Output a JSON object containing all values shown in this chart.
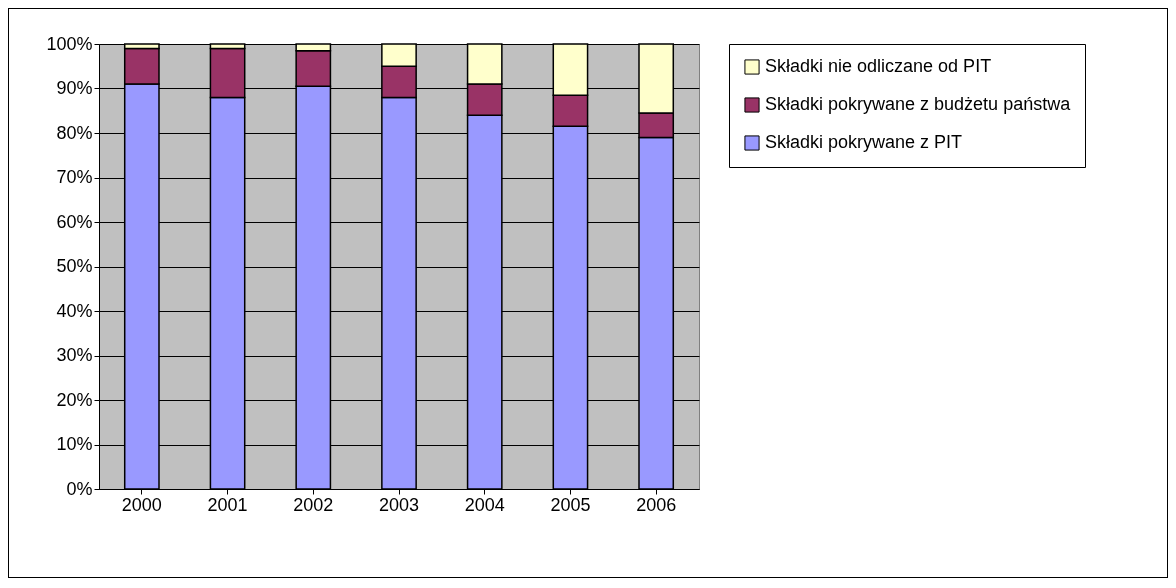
{
  "chart_data": {
    "type": "bar",
    "stacked": true,
    "categories": [
      "2000",
      "2001",
      "2002",
      "2003",
      "2004",
      "2005",
      "2006"
    ],
    "series": [
      {
        "name": "Składki pokrywane z PIT",
        "color": "#9999ff",
        "values": [
          91,
          88,
          90.5,
          88,
          84,
          81.5,
          79
        ]
      },
      {
        "name": "Składki pokrywane z budżetu państwa",
        "color": "#993366",
        "values": [
          8,
          11,
          8,
          7,
          7,
          7,
          5.5
        ]
      },
      {
        "name": "Składki nie odliczane od  PIT",
        "color": "#ffffcc",
        "values": [
          1,
          1,
          1.5,
          5,
          9,
          11.5,
          15.5
        ]
      }
    ],
    "ylim": [
      0,
      100
    ],
    "yticks": [
      {
        "value": 0,
        "label": "0%"
      },
      {
        "value": 10,
        "label": "10%"
      },
      {
        "value": 20,
        "label": "20%"
      },
      {
        "value": 30,
        "label": "30%"
      },
      {
        "value": 40,
        "label": "40%"
      },
      {
        "value": 50,
        "label": "50%"
      },
      {
        "value": 60,
        "label": "60%"
      },
      {
        "value": 70,
        "label": "70%"
      },
      {
        "value": 80,
        "label": "80%"
      },
      {
        "value": 90,
        "label": "90%"
      },
      {
        "value": 100,
        "label": "100%"
      }
    ],
    "grid": "y",
    "legend": "right"
  }
}
